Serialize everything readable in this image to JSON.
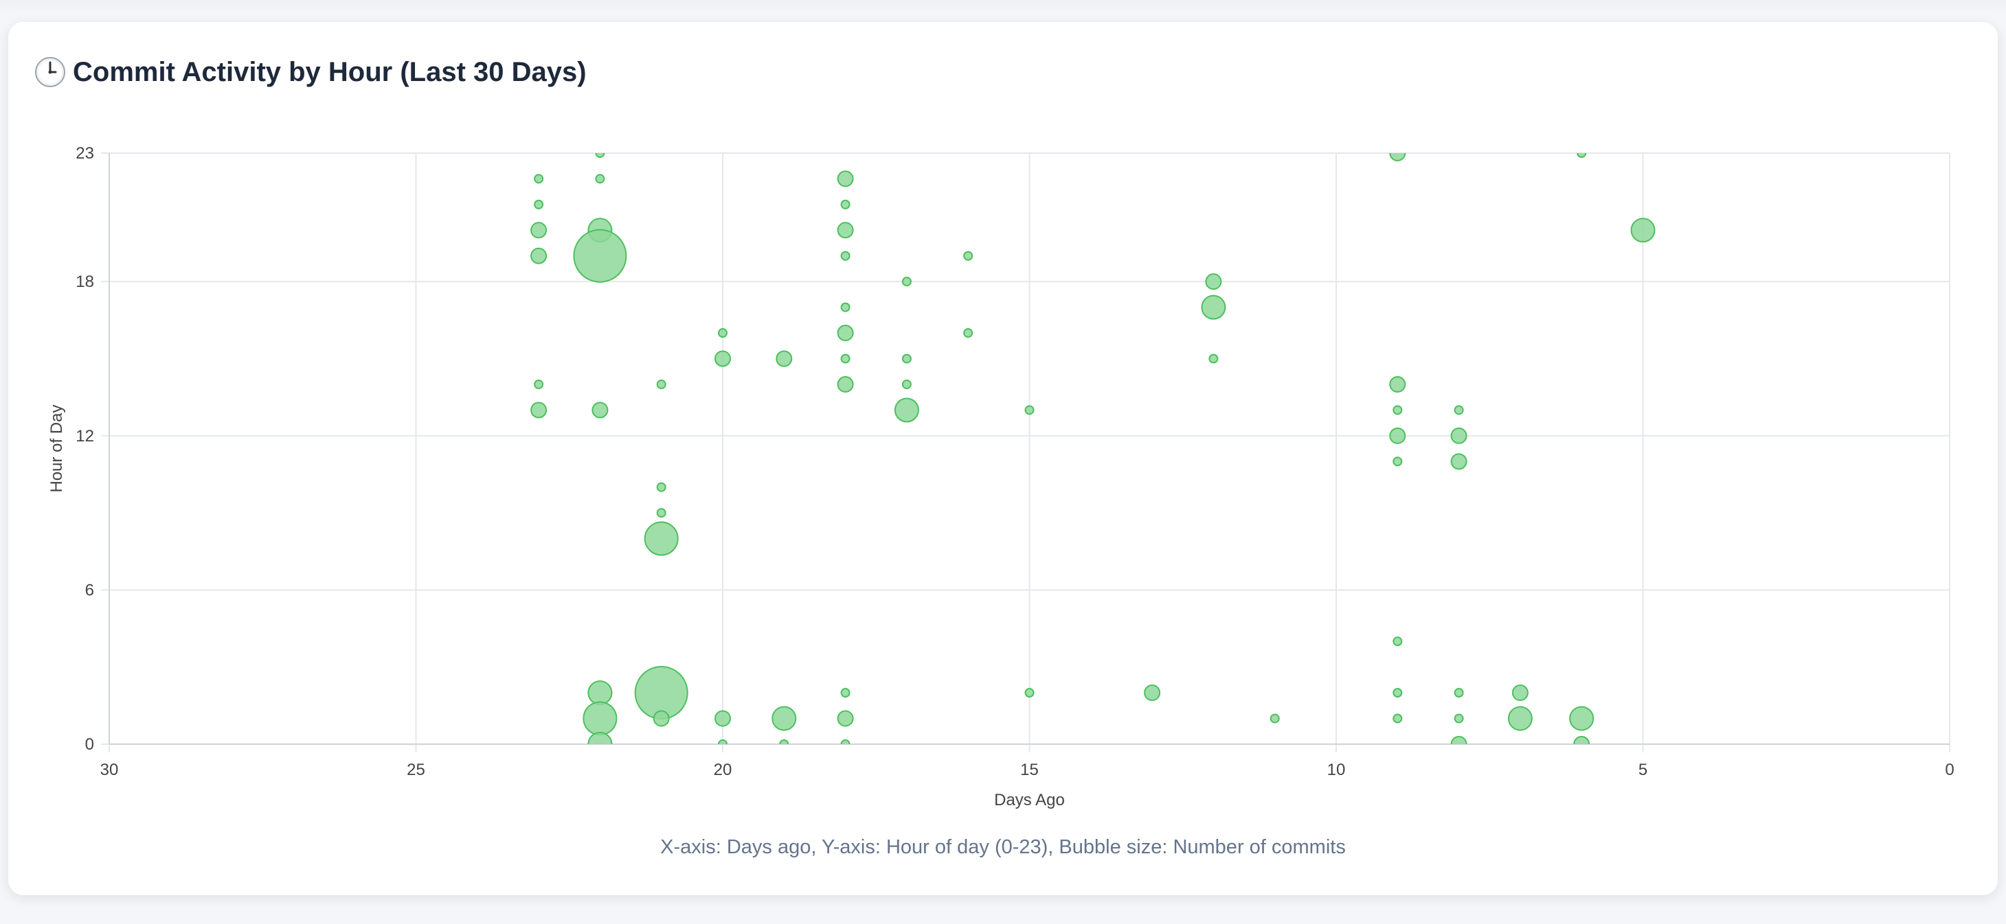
{
  "card": {
    "title": "Commit Activity by Hour (Last 30 Days)",
    "icon": "clock-icon",
    "footnote": "X-axis: Days ago, Y-axis: Hour of day (0-23), Bubble size: Number of commits"
  },
  "colors": {
    "bubble_fill": "#8fd89a",
    "bubble_stroke": "#4cbf5e",
    "grid": "#e5e7eb",
    "axis_text": "#444444",
    "title": "#1e293b",
    "footnote": "#64748b"
  },
  "chart_data": {
    "type": "scatter",
    "variant": "bubble",
    "xlabel": "Days Ago",
    "ylabel": "Hour of Day",
    "xlim": [
      30,
      0
    ],
    "ylim": [
      0,
      23
    ],
    "x_reversed": true,
    "xticks": [
      30,
      25,
      20,
      15,
      10,
      5,
      0
    ],
    "yticks": [
      0,
      6,
      12,
      18,
      23
    ],
    "grid": true,
    "legend": "none",
    "size_meaning": "Number of commits",
    "points": [
      {
        "x": 23,
        "y": 22,
        "r": 1
      },
      {
        "x": 23,
        "y": 21,
        "r": 1
      },
      {
        "x": 23,
        "y": 20,
        "r": 2
      },
      {
        "x": 23,
        "y": 19,
        "r": 2
      },
      {
        "x": 23,
        "y": 14,
        "r": 1
      },
      {
        "x": 23,
        "y": 13,
        "r": 2
      },
      {
        "x": 22,
        "y": 23,
        "r": 1
      },
      {
        "x": 22,
        "y": 22,
        "r": 1
      },
      {
        "x": 22,
        "y": 20,
        "r": 3
      },
      {
        "x": 22,
        "y": 19,
        "r": 7
      },
      {
        "x": 22,
        "y": 13,
        "r": 2
      },
      {
        "x": 22,
        "y": 2,
        "r": 3
      },
      {
        "x": 22,
        "y": 1,
        "r": 4
      },
      {
        "x": 22,
        "y": 0,
        "r": 3
      },
      {
        "x": 21,
        "y": 14,
        "r": 1
      },
      {
        "x": 21,
        "y": 10,
        "r": 1
      },
      {
        "x": 21,
        "y": 9,
        "r": 1
      },
      {
        "x": 21,
        "y": 8,
        "r": 4
      },
      {
        "x": 21,
        "y": 2,
        "r": 7
      },
      {
        "x": 21,
        "y": 1,
        "r": 2
      },
      {
        "x": 20,
        "y": 16,
        "r": 1
      },
      {
        "x": 20,
        "y": 15,
        "r": 2
      },
      {
        "x": 20,
        "y": 1,
        "r": 2
      },
      {
        "x": 20,
        "y": 0,
        "r": 1
      },
      {
        "x": 19,
        "y": 15,
        "r": 2
      },
      {
        "x": 19,
        "y": 1,
        "r": 3
      },
      {
        "x": 19,
        "y": 0,
        "r": 1
      },
      {
        "x": 18,
        "y": 22,
        "r": 2
      },
      {
        "x": 18,
        "y": 21,
        "r": 1
      },
      {
        "x": 18,
        "y": 20,
        "r": 2
      },
      {
        "x": 18,
        "y": 19,
        "r": 1
      },
      {
        "x": 18,
        "y": 17,
        "r": 1
      },
      {
        "x": 18,
        "y": 16,
        "r": 2
      },
      {
        "x": 18,
        "y": 15,
        "r": 1
      },
      {
        "x": 18,
        "y": 14,
        "r": 2
      },
      {
        "x": 18,
        "y": 2,
        "r": 1
      },
      {
        "x": 18,
        "y": 1,
        "r": 2
      },
      {
        "x": 18,
        "y": 0,
        "r": 1
      },
      {
        "x": 17,
        "y": 18,
        "r": 1
      },
      {
        "x": 17,
        "y": 15,
        "r": 1
      },
      {
        "x": 17,
        "y": 14,
        "r": 1
      },
      {
        "x": 17,
        "y": 13,
        "r": 3
      },
      {
        "x": 16,
        "y": 19,
        "r": 1
      },
      {
        "x": 16,
        "y": 16,
        "r": 1
      },
      {
        "x": 15,
        "y": 13,
        "r": 1
      },
      {
        "x": 15,
        "y": 2,
        "r": 1
      },
      {
        "x": 13,
        "y": 2,
        "r": 2
      },
      {
        "x": 12,
        "y": 18,
        "r": 2
      },
      {
        "x": 12,
        "y": 17,
        "r": 3
      },
      {
        "x": 12,
        "y": 15,
        "r": 1
      },
      {
        "x": 11,
        "y": 1,
        "r": 1
      },
      {
        "x": 9,
        "y": 23,
        "r": 2
      },
      {
        "x": 9,
        "y": 14,
        "r": 2
      },
      {
        "x": 9,
        "y": 13,
        "r": 1
      },
      {
        "x": 9,
        "y": 12,
        "r": 2
      },
      {
        "x": 9,
        "y": 11,
        "r": 1
      },
      {
        "x": 9,
        "y": 4,
        "r": 1
      },
      {
        "x": 9,
        "y": 2,
        "r": 1
      },
      {
        "x": 9,
        "y": 1,
        "r": 1
      },
      {
        "x": 8,
        "y": 13,
        "r": 1
      },
      {
        "x": 8,
        "y": 12,
        "r": 2
      },
      {
        "x": 8,
        "y": 11,
        "r": 2
      },
      {
        "x": 8,
        "y": 2,
        "r": 1
      },
      {
        "x": 8,
        "y": 1,
        "r": 1
      },
      {
        "x": 8,
        "y": 0,
        "r": 2
      },
      {
        "x": 7,
        "y": 2,
        "r": 2
      },
      {
        "x": 7,
        "y": 1,
        "r": 3
      },
      {
        "x": 6,
        "y": 23,
        "r": 1
      },
      {
        "x": 6,
        "y": 1,
        "r": 3
      },
      {
        "x": 6,
        "y": 0,
        "r": 2
      },
      {
        "x": 5,
        "y": 20,
        "r": 3
      }
    ]
  }
}
